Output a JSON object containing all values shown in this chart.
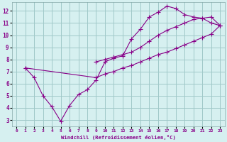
{
  "background_color": "#d6f0f0",
  "grid_color": "#a0c8c8",
  "line_color": "#880088",
  "xlabel": "Windchill (Refroidissement éolien,°C)",
  "xlim": [
    -0.5,
    23.5
  ],
  "ylim": [
    2.5,
    12.7
  ],
  "xticks": [
    0,
    1,
    2,
    3,
    4,
    5,
    6,
    7,
    8,
    9,
    10,
    11,
    12,
    13,
    14,
    15,
    16,
    17,
    18,
    19,
    20,
    21,
    22,
    23
  ],
  "yticks": [
    3,
    4,
    5,
    6,
    7,
    8,
    9,
    10,
    11,
    12
  ],
  "series1_x": [
    1,
    2,
    3,
    4,
    5,
    6,
    7,
    8,
    9,
    10,
    11,
    12,
    13,
    14,
    15,
    16,
    17,
    18,
    19,
    20,
    21,
    22,
    23
  ],
  "series1_y": [
    7.3,
    6.5,
    5.0,
    4.1,
    2.9,
    4.2,
    5.1,
    5.5,
    6.3,
    7.8,
    8.1,
    8.3,
    9.7,
    10.5,
    11.5,
    11.9,
    12.4,
    12.2,
    11.7,
    11.5,
    11.4,
    11.0,
    10.8
  ],
  "series2_x": [
    1,
    23
  ],
  "series2_y": [
    7.3,
    10.8
  ],
  "series3_x": [
    1,
    23
  ],
  "series3_y": [
    7.3,
    10.8
  ],
  "series2_mid_x": [
    9,
    10,
    11,
    12,
    13,
    14,
    15,
    16,
    17,
    18,
    19,
    20,
    21,
    22,
    23
  ],
  "series2_mid_y": [
    7.8,
    8.0,
    8.2,
    8.4,
    8.6,
    9.0,
    9.5,
    10.0,
    10.4,
    10.7,
    11.0,
    11.3,
    11.4,
    11.5,
    10.8
  ],
  "series3_mid_x": [
    1,
    9,
    10,
    11,
    12,
    13,
    14,
    15,
    16,
    17,
    18,
    19,
    20,
    21,
    22,
    23
  ],
  "series3_mid_y": [
    7.3,
    6.5,
    6.8,
    7.0,
    7.3,
    7.5,
    7.8,
    8.1,
    8.4,
    8.6,
    8.9,
    9.2,
    9.5,
    9.8,
    10.1,
    10.8
  ]
}
